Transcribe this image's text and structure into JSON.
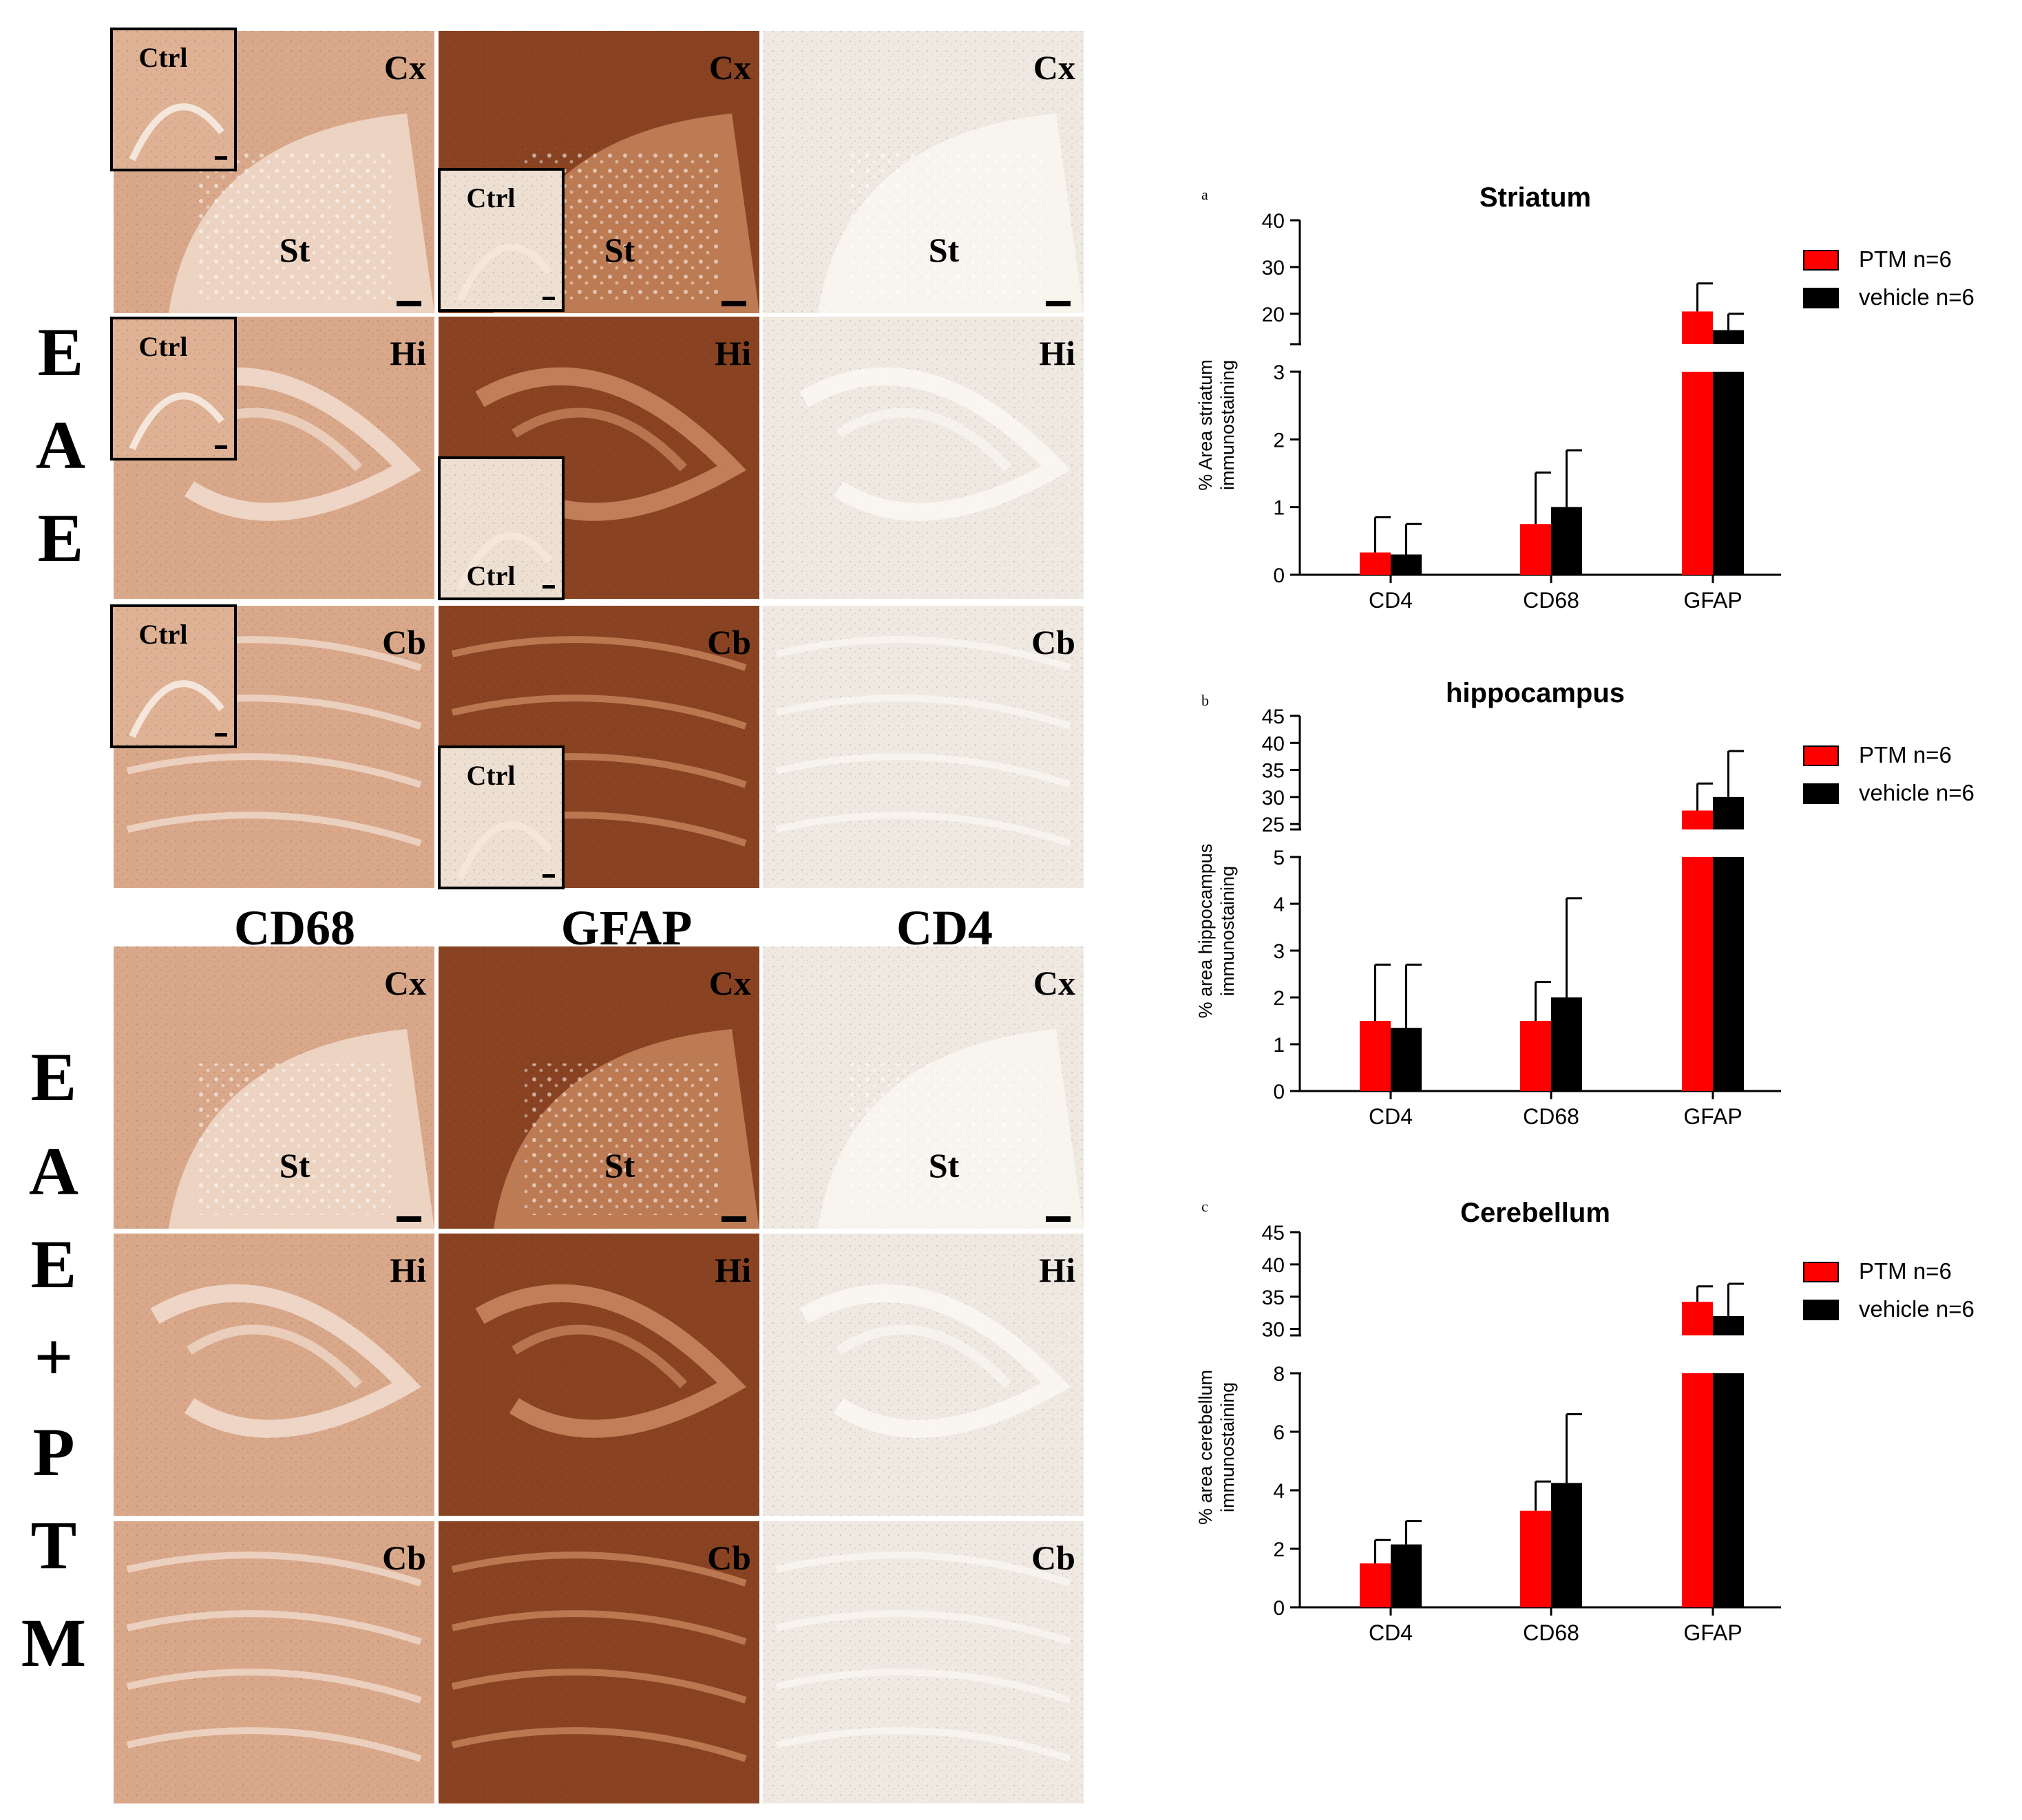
{
  "colors": {
    "ptm": "#ff0000",
    "vehicle": "#000000",
    "cd68_tissue": "#d9a88a",
    "gfap_tissue": "#8a4322",
    "cd4_tissue": "#efe9e2",
    "micrograph_border": "#ffffff"
  },
  "micrographs": {
    "side_label_top": [
      "E",
      "A",
      "E"
    ],
    "side_label_bottom": [
      "E",
      "A",
      "E",
      "+",
      "P",
      "T",
      "M"
    ],
    "column_headers": [
      "CD68",
      "GFAP",
      "CD4"
    ],
    "inset_label": "Ctrl",
    "region_labels": {
      "cortex": "Cx",
      "striatum": "St",
      "hippocampus": "Hi",
      "cerebellum": "Cb"
    }
  },
  "chart_data": [
    {
      "type": "bar",
      "panel_letter": "a",
      "title": "Striatum",
      "ylabel_lines": [
        "% Area striatum",
        "immunostaining"
      ],
      "categories": [
        "CD4",
        "CD68",
        "GFAP"
      ],
      "series": [
        {
          "name": "PTM n=6",
          "values": [
            0.33,
            0.75,
            20.5
          ],
          "errors": [
            0.52,
            0.76,
            6.0
          ]
        },
        {
          "name": "vehicle n=6",
          "values": [
            0.3,
            1.0,
            16.5
          ],
          "errors": [
            0.45,
            0.84,
            3.5
          ]
        }
      ],
      "broken_axis": {
        "lower": {
          "ylim": [
            0,
            3
          ],
          "ticks": [
            0,
            1,
            2,
            3
          ]
        },
        "upper": {
          "ylim": [
            13.5,
            40
          ],
          "ticks": [
            20,
            30,
            40
          ]
        }
      },
      "legend": "right"
    },
    {
      "type": "bar",
      "panel_letter": "b",
      "title": "hippocampus",
      "ylabel_lines": [
        "% area hippocampus",
        "immunostaining"
      ],
      "categories": [
        "CD4",
        "CD68",
        "GFAP"
      ],
      "series": [
        {
          "name": "PTM n=6",
          "values": [
            1.5,
            1.5,
            27.5
          ],
          "errors": [
            1.2,
            0.83,
            5.0
          ]
        },
        {
          "name": "vehicle n=6",
          "values": [
            1.35,
            2.0,
            30.0
          ],
          "errors": [
            1.35,
            2.12,
            8.5
          ]
        }
      ],
      "broken_axis": {
        "lower": {
          "ylim": [
            0,
            5
          ],
          "ticks": [
            0,
            1,
            2,
            3,
            4,
            5
          ]
        },
        "upper": {
          "ylim": [
            24,
            45
          ],
          "ticks": [
            25,
            30,
            35,
            40,
            45
          ]
        }
      },
      "legend": "right"
    },
    {
      "type": "bar",
      "panel_letter": "c",
      "title": "Cerebellum",
      "ylabel_lines": [
        "% area cerebellum",
        "immunostaining"
      ],
      "categories": [
        "CD4",
        "CD68",
        "GFAP"
      ],
      "series": [
        {
          "name": "PTM n=6",
          "values": [
            1.5,
            3.3,
            34.2
          ],
          "errors": [
            0.8,
            1.0,
            2.4
          ]
        },
        {
          "name": "vehicle n=6",
          "values": [
            2.15,
            4.25,
            32.0
          ],
          "errors": [
            0.8,
            2.35,
            5.0
          ]
        }
      ],
      "broken_axis": {
        "lower": {
          "ylim": [
            0,
            8
          ],
          "ticks": [
            0,
            2,
            4,
            6,
            8
          ]
        },
        "upper": {
          "ylim": [
            29,
            45
          ],
          "ticks": [
            30,
            35,
            40,
            45
          ]
        }
      },
      "legend": "right"
    }
  ]
}
